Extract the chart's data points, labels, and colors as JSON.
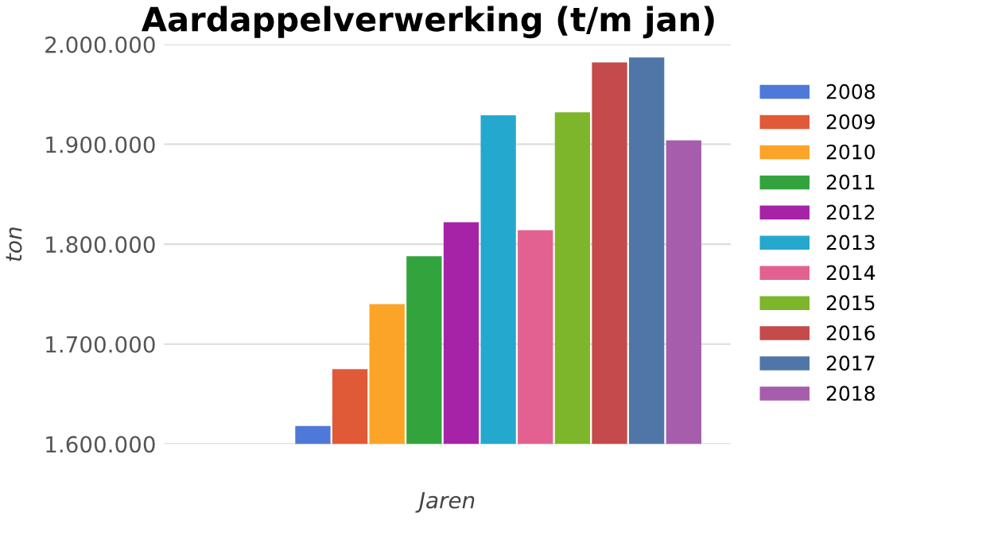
{
  "chart_data": {
    "type": "bar",
    "title": "Aardappelverwerking (t/m jan)",
    "xlabel": "Jaren",
    "ylabel": "ton",
    "categories": [
      null
    ],
    "series": [
      {
        "name": "2008",
        "color": "#4f79d8",
        "values": [
          1618000
        ]
      },
      {
        "name": "2009",
        "color": "#e05a38",
        "values": [
          1675000
        ]
      },
      {
        "name": "2010",
        "color": "#fba428",
        "values": [
          1740000
        ]
      },
      {
        "name": "2011",
        "color": "#33a33d",
        "values": [
          1788000
        ]
      },
      {
        "name": "2012",
        "color": "#a623a8",
        "values": [
          1822000
        ]
      },
      {
        "name": "2013",
        "color": "#25a8ce",
        "values": [
          1929000
        ]
      },
      {
        "name": "2014",
        "color": "#e36190",
        "values": [
          1814000
        ]
      },
      {
        "name": "2015",
        "color": "#7db62a",
        "values": [
          1932000
        ]
      },
      {
        "name": "2016",
        "color": "#c44a4b",
        "values": [
          1982000
        ]
      },
      {
        "name": "2017",
        "color": "#4f76a6",
        "values": [
          1987000
        ]
      },
      {
        "name": "2018",
        "color": "#a65eac",
        "values": [
          1904000
        ]
      }
    ],
    "ylim": [
      1600000,
      2000000
    ],
    "yticks": [
      {
        "value": 1600000,
        "label": "1.600.000"
      },
      {
        "value": 1700000,
        "label": "1.700.000"
      },
      {
        "value": 1800000,
        "label": "1.800.000"
      },
      {
        "value": 1900000,
        "label": "1.900.000"
      },
      {
        "value": 2000000,
        "label": "2.000.000"
      }
    ],
    "grid": "y",
    "legend": "right"
  }
}
